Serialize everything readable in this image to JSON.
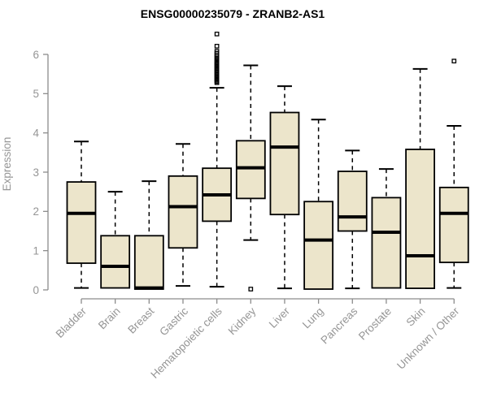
{
  "title": "ENSG00000235079 - ZRANB2-AS1",
  "colors": {
    "box_fill": "#ece5cb",
    "box_stroke": "#000000",
    "median_color": "#000000",
    "whisker_color": "#000000",
    "outlier_color": "#000000",
    "axis_line": "#8c8c8c",
    "axis_text": "#959595",
    "title_color": "#000000",
    "background": "#ffffff"
  },
  "chart_data": {
    "type": "boxplot",
    "title": "ENSG00000235079 - ZRANB2-AS1",
    "xlabel": "",
    "ylabel": "Expression",
    "ylim": [
      0,
      6
    ],
    "y_ticks": [
      0,
      1,
      2,
      3,
      4,
      5,
      6
    ],
    "grid": false,
    "legend": false,
    "categories": [
      "Bladder",
      "Brain",
      "Breast",
      "Gastric",
      "Hematopoietic cells",
      "Kidney",
      "Liver",
      "Lung",
      "Pancreas",
      "Prostate",
      "Skin",
      "Unknown / Other"
    ],
    "series": [
      {
        "name": "Bladder",
        "whisker_low": 0.05,
        "q1": 0.68,
        "median": 1.95,
        "q3": 2.75,
        "whisker_high": 3.78,
        "outliers": []
      },
      {
        "name": "Brain",
        "whisker_low": 0.05,
        "q1": 0.05,
        "median": 0.6,
        "q3": 1.38,
        "whisker_high": 2.5,
        "outliers": []
      },
      {
        "name": "Breast",
        "whisker_low": 0.02,
        "q1": 0.02,
        "median": 0.05,
        "q3": 1.38,
        "whisker_high": 2.77,
        "outliers": []
      },
      {
        "name": "Gastric",
        "whisker_low": 0.1,
        "q1": 1.07,
        "median": 2.12,
        "q3": 2.9,
        "whisker_high": 3.72,
        "outliers": []
      },
      {
        "name": "Hematopoietic cells",
        "whisker_low": 0.08,
        "q1": 1.75,
        "median": 2.42,
        "q3": 3.1,
        "whisker_high": 5.15,
        "outliers": [
          5.28,
          5.31,
          5.34,
          5.37,
          5.4,
          5.43,
          5.46,
          5.49,
          5.52,
          5.55,
          5.58,
          5.61,
          5.64,
          5.67,
          5.7,
          5.73,
          5.76,
          5.79,
          5.82,
          5.86,
          5.9,
          5.94,
          5.98,
          6.03,
          6.08,
          6.21,
          6.52
        ]
      },
      {
        "name": "Kidney",
        "whisker_low": 1.27,
        "q1": 2.33,
        "median": 3.11,
        "q3": 3.8,
        "whisker_high": 5.72,
        "outliers": [
          0.02
        ]
      },
      {
        "name": "Liver",
        "whisker_low": 0.04,
        "q1": 1.92,
        "median": 3.64,
        "q3": 4.52,
        "whisker_high": 5.19,
        "outliers": []
      },
      {
        "name": "Lung",
        "whisker_low": 0.02,
        "q1": 0.02,
        "median": 1.27,
        "q3": 2.25,
        "whisker_high": 4.34,
        "outliers": []
      },
      {
        "name": "Pancreas",
        "whisker_low": 0.04,
        "q1": 1.5,
        "median": 1.86,
        "q3": 3.02,
        "whisker_high": 3.55,
        "outliers": []
      },
      {
        "name": "Prostate",
        "whisker_low": 0.05,
        "q1": 0.05,
        "median": 1.47,
        "q3": 2.35,
        "whisker_high": 3.08,
        "outliers": []
      },
      {
        "name": "Skin",
        "whisker_low": 0.04,
        "q1": 0.04,
        "median": 0.87,
        "q3": 3.58,
        "whisker_high": 5.63,
        "outliers": []
      },
      {
        "name": "Unknown / Other",
        "whisker_low": 0.05,
        "q1": 0.7,
        "median": 1.95,
        "q3": 2.61,
        "whisker_high": 4.18,
        "outliers": [
          5.83
        ]
      }
    ]
  }
}
